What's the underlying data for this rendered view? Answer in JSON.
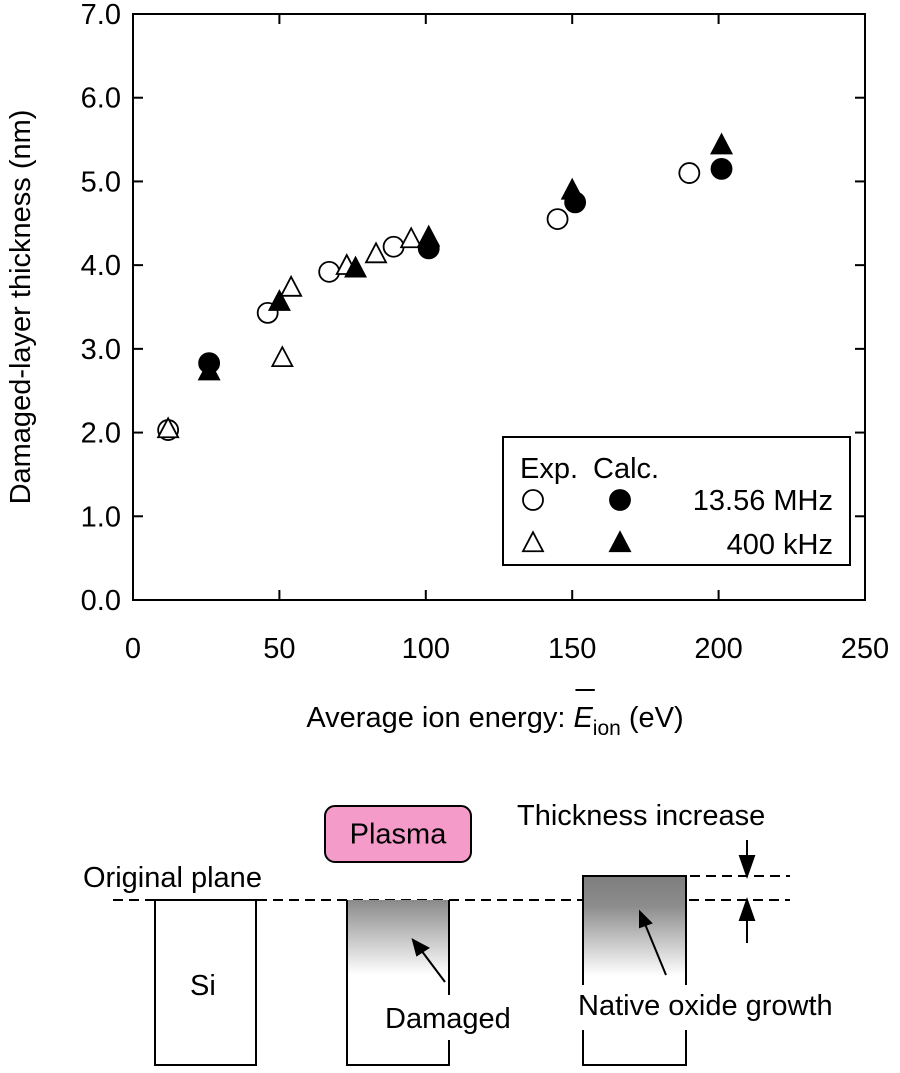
{
  "chart_data": {
    "type": "scatter",
    "ylabel": "Damaged-layer thickness (nm)",
    "xlabel": {
      "text": "Average ion energy: ",
      "symbol": "E",
      "subscript": "ion",
      "unit": "(eV)"
    },
    "xlim": [
      0,
      250
    ],
    "xticks": [
      0,
      50,
      100,
      150,
      200,
      250
    ],
    "ylim": [
      0,
      7
    ],
    "yticks": [
      {
        "value": 0,
        "label": "0.0"
      },
      {
        "value": 1,
        "label": "1.0"
      },
      {
        "value": 2,
        "label": "2.0"
      },
      {
        "value": 3,
        "label": "3.0"
      },
      {
        "value": 4,
        "label": "4.0"
      },
      {
        "value": 5,
        "label": "5.0"
      },
      {
        "value": 6,
        "label": "6.0"
      },
      {
        "value": 7,
        "label": "7.0"
      }
    ],
    "legend_headers": [
      "Exp.",
      "Calc."
    ],
    "legend_position": "lower right",
    "color": "#000000",
    "series": [
      {
        "name": "13.56 MHz",
        "marker": "circle",
        "exp_x": [
          12,
          46,
          67,
          89,
          145,
          190
        ],
        "exp_values": [
          2.03,
          3.43,
          3.92,
          4.22,
          4.55,
          5.1
        ],
        "calc_x": [
          26,
          101,
          151,
          201
        ],
        "calc_values": [
          2.83,
          4.2,
          4.75,
          5.15
        ]
      },
      {
        "name": "400 kHz",
        "marker": "triangle",
        "exp_x": [
          12,
          51,
          54,
          73,
          83,
          95
        ],
        "exp_values": [
          2.03,
          2.88,
          3.72,
          3.98,
          4.12,
          4.3
        ],
        "calc_x": [
          26,
          50,
          76,
          101,
          150,
          201
        ],
        "calc_values": [
          2.72,
          3.55,
          3.95,
          4.32,
          4.88,
          5.42
        ]
      }
    ]
  },
  "diagram": {
    "plasma": "Plasma",
    "original_plane": "Original plane",
    "si": "Si",
    "damaged": "Damaged",
    "native_oxide": "Native oxide growth",
    "thickness_increase": "Thickness increase"
  }
}
